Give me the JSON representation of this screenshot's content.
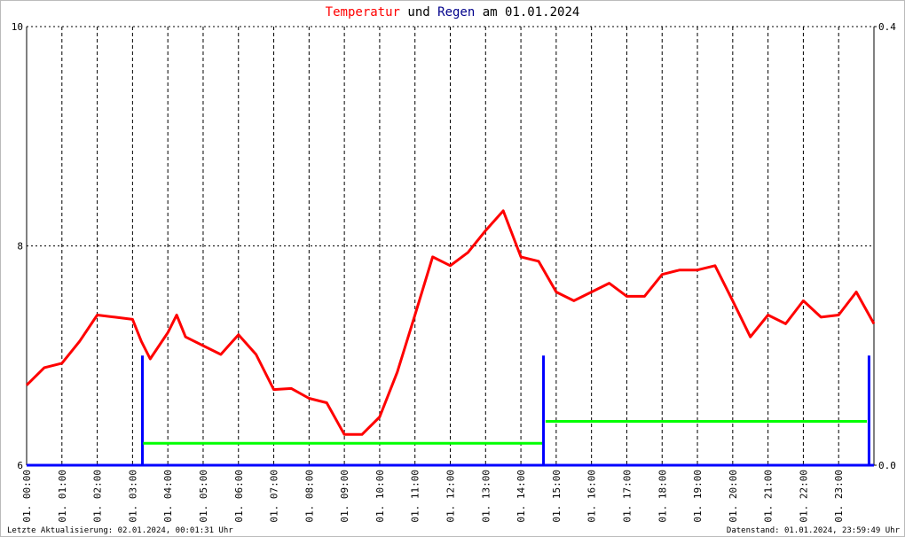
{
  "chart_data": {
    "type": "line",
    "title_parts": [
      {
        "text": "Temperatur",
        "color": "#ff0000"
      },
      {
        "text": "und",
        "color": "#000000"
      },
      {
        "text": "Regen",
        "color": "#00008b"
      },
      {
        "text": "am 01.01.2024",
        "color": "#000000"
      }
    ],
    "footer_left": "Letzte Aktualisierung: 02.01.2024, 00:01:31 Uhr",
    "footer_right": "Datenstand: 01.01.2024, 23:59:49 Uhr",
    "xlim": [
      0,
      24
    ],
    "xticks": [
      {
        "value": 0,
        "label": "01. 00:00"
      },
      {
        "value": 1,
        "label": "01. 01:00"
      },
      {
        "value": 2,
        "label": "01. 02:00"
      },
      {
        "value": 3,
        "label": "01. 03:00"
      },
      {
        "value": 4,
        "label": "01. 04:00"
      },
      {
        "value": 5,
        "label": "01. 05:00"
      },
      {
        "value": 6,
        "label": "01. 06:00"
      },
      {
        "value": 7,
        "label": "01. 07:00"
      },
      {
        "value": 8,
        "label": "01. 08:00"
      },
      {
        "value": 9,
        "label": "01. 09:00"
      },
      {
        "value": 10,
        "label": "01. 10:00"
      },
      {
        "value": 11,
        "label": "01. 11:00"
      },
      {
        "value": 12,
        "label": "01. 12:00"
      },
      {
        "value": 13,
        "label": "01. 13:00"
      },
      {
        "value": 14,
        "label": "01. 14:00"
      },
      {
        "value": 15,
        "label": "01. 15:00"
      },
      {
        "value": 16,
        "label": "01. 16:00"
      },
      {
        "value": 17,
        "label": "01. 17:00"
      },
      {
        "value": 18,
        "label": "01. 18:00"
      },
      {
        "value": 19,
        "label": "01. 19:00"
      },
      {
        "value": 20,
        "label": "01. 20:00"
      },
      {
        "value": 21,
        "label": "01. 21:00"
      },
      {
        "value": 22,
        "label": "01. 22:00"
      },
      {
        "value": 23,
        "label": "01. 23:00"
      }
    ],
    "ylim": [
      6,
      10
    ],
    "yticks": [
      6,
      8,
      10
    ],
    "y2lim": [
      0,
      0.4
    ],
    "y2ticks": [
      {
        "value": 0,
        "label": "0.0"
      },
      0.4
    ],
    "grid": true,
    "series": [
      {
        "color": "#ff0000",
        "style": "line",
        "x": [
          0,
          0.5,
          1,
          1.5,
          2,
          2.5,
          3,
          3.25,
          3.5,
          4,
          4.25,
          4.5,
          5,
          5.5,
          6,
          6.5,
          7,
          7.5,
          8,
          8.5,
          9,
          9.5,
          10,
          10.5,
          11,
          11.5,
          12,
          12.5,
          13,
          13.5,
          14,
          14.5,
          15,
          15.5,
          16,
          16.5,
          17,
          17.5,
          18,
          18.5,
          19,
          19.5,
          20,
          20.5,
          21,
          21.5,
          22,
          22.5,
          23,
          23.5,
          24
        ],
        "values": [
          6.73,
          6.89,
          6.93,
          7.13,
          7.37,
          7.35,
          7.33,
          7.13,
          6.97,
          7.21,
          7.37,
          7.17,
          7.09,
          7.01,
          7.19,
          7.01,
          6.69,
          6.7,
          6.61,
          6.57,
          6.28,
          6.28,
          6.44,
          6.85,
          7.37,
          7.9,
          7.82,
          7.94,
          8.14,
          8.32,
          7.9,
          7.86,
          7.58,
          7.5,
          7.58,
          7.66,
          7.54,
          7.54,
          7.74,
          7.78,
          7.78,
          7.82,
          7.5,
          7.17,
          7.37,
          7.29,
          7.5,
          7.35,
          7.37,
          7.58,
          7.29
        ]
      },
      {
        "color": "#0000ff",
        "style": "spikes",
        "axis": "y2",
        "x": [
          3.28,
          14.64,
          23.86
        ],
        "values": [
          0.1,
          0.1,
          0.1
        ]
      },
      {
        "color": "#00ff00",
        "style": "line",
        "axis": "y2",
        "x": [
          3.3,
          14.6,
          14.62,
          14.7,
          23.8
        ],
        "values": [
          0.02,
          0.02,
          null,
          0.04,
          0.04
        ]
      }
    ]
  }
}
